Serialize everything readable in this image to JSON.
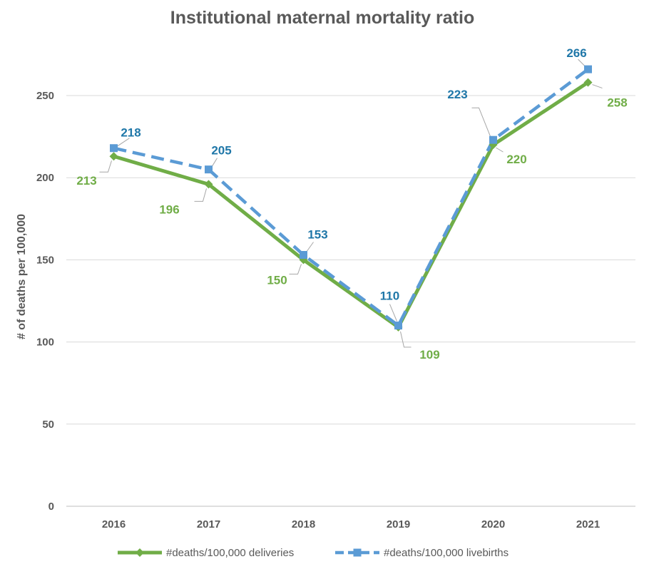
{
  "chart_data": {
    "type": "line",
    "title": "Institutional maternal mortality ratio",
    "xlabel": "",
    "ylabel": "# of deaths per 100,000",
    "categories": [
      "2016",
      "2017",
      "2018",
      "2019",
      "2020",
      "2021"
    ],
    "ylim": [
      0,
      280
    ],
    "yticks": [
      0,
      50,
      100,
      150,
      200,
      250
    ],
    "grid": true,
    "legend_position": "bottom",
    "series": [
      {
        "name": "#deaths/100,000 deliveries",
        "values": [
          213,
          196,
          150,
          109,
          220,
          258
        ],
        "color": "#70AD47",
        "line_style": "solid",
        "marker": "diamond"
      },
      {
        "name": "#deaths/100,000 livebirths",
        "values": [
          218,
          205,
          153,
          110,
          223,
          266
        ],
        "color": "#5B9BD5",
        "label_color": "#1F77A8",
        "line_style": "dashed",
        "marker": "square"
      }
    ]
  }
}
